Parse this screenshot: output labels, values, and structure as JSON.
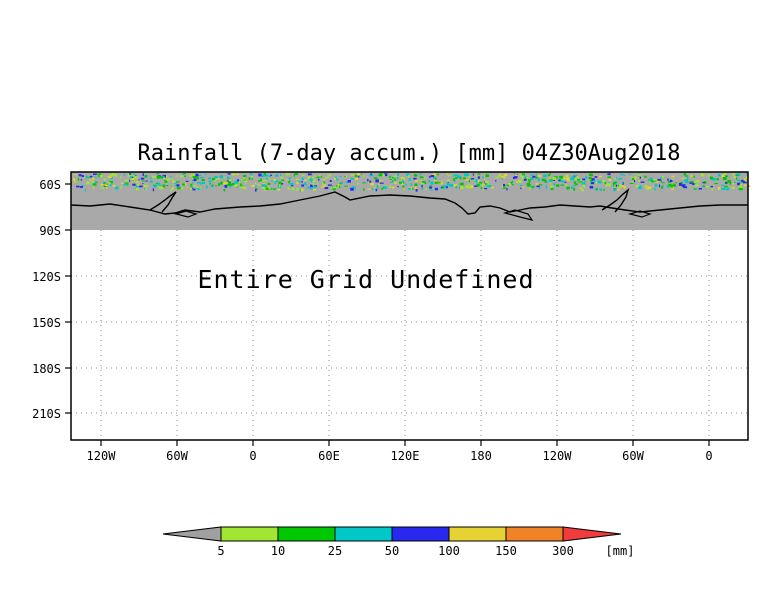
{
  "title": "Rainfall (7-day accum.) [mm] 04Z30Aug2018",
  "overlay_message": "Entire Grid Undefined",
  "y_axis_labels": [
    "60S",
    "90S",
    "120S",
    "150S",
    "180S",
    "210S"
  ],
  "x_axis_labels": [
    "120W",
    "60W",
    "0",
    "60E",
    "120E",
    "180",
    "120W",
    "60W",
    "0"
  ],
  "colorbar": {
    "unit": "[mm]",
    "tick_labels": [
      "5",
      "10",
      "25",
      "50",
      "100",
      "150",
      "300"
    ],
    "colors": [
      "#a0a0a0",
      "#a0e632",
      "#00c800",
      "#00c8c8",
      "#2828f0",
      "#e6d232",
      "#f08228",
      "#f03c3c"
    ]
  },
  "colors": {
    "land": "#a9a9a9",
    "frame": "#000000",
    "grid": "#8c8c8c"
  }
}
